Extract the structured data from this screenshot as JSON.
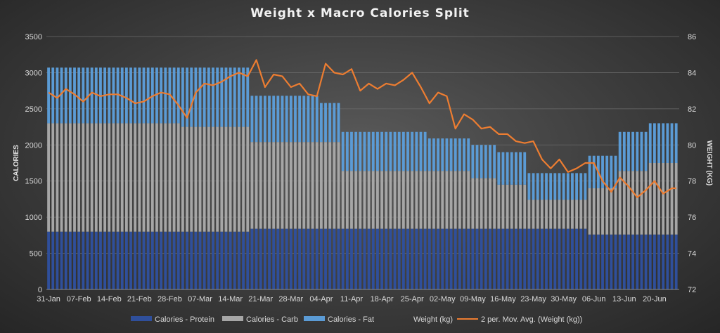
{
  "chart_data": {
    "type": "bar",
    "title": "Weight x Macro Calories Split",
    "ylabel": "CALORIES",
    "y2label": "WEIGHT (KG)",
    "ylim": [
      0,
      3500
    ],
    "y2lim": [
      72,
      86
    ],
    "yticks": [
      0,
      500,
      1000,
      1500,
      2000,
      2500,
      3000,
      3500
    ],
    "y2ticks": [
      72,
      74,
      76,
      78,
      80,
      82,
      84,
      86
    ],
    "x_tick_labels": [
      "31-Jan",
      "07-Feb",
      "14-Feb",
      "21-Feb",
      "28-Feb",
      "07-Mar",
      "14-Mar",
      "21-Mar",
      "28-Mar",
      "04-Apr",
      "11-Apr",
      "18-Apr",
      "25-Apr",
      "02-May",
      "09-May",
      "16-May",
      "23-May",
      "30-May",
      "06-Jun",
      "13-Jun",
      "20-Jun"
    ],
    "stacked": true,
    "grid": true,
    "legend_position": "bottom",
    "colors": {
      "protein": "#2f4f9b",
      "carb": "#a6a6a6",
      "fat": "#5b9bd5",
      "moving_avg": "#ed7d31"
    },
    "periods": [
      {
        "start": "31-Jan",
        "end": "02-Mar",
        "protein": 800,
        "carb": 1500,
        "fat": 770
      },
      {
        "start": "03-Mar",
        "end": "18-Mar",
        "protein": 800,
        "carb": 1450,
        "fat": 820
      },
      {
        "start": "19-Mar",
        "end": "03-Apr",
        "protein": 840,
        "carb": 1200,
        "fat": 640
      },
      {
        "start": "04-Apr",
        "end": "08-Apr",
        "protein": 840,
        "carb": 1200,
        "fat": 540
      },
      {
        "start": "09-Apr",
        "end": "28-Apr",
        "protein": 840,
        "carb": 800,
        "fat": 540
      },
      {
        "start": "29-Apr",
        "end": "08-May",
        "protein": 840,
        "carb": 800,
        "fat": 450
      },
      {
        "start": "09-May",
        "end": "14-May",
        "protein": 840,
        "carb": 700,
        "fat": 460
      },
      {
        "start": "15-May",
        "end": "21-May",
        "protein": 840,
        "carb": 610,
        "fat": 450
      },
      {
        "start": "22-May",
        "end": "04-Jun",
        "protein": 840,
        "carb": 400,
        "fat": 370
      },
      {
        "start": "05-Jun",
        "end": "11-Jun",
        "protein": 760,
        "carb": 640,
        "fat": 450
      },
      {
        "start": "12-Jun",
        "end": "18-Jun",
        "protein": 760,
        "carb": 880,
        "fat": 540
      },
      {
        "start": "19-Jun",
        "end": "25-Jun",
        "protein": 760,
        "carb": 990,
        "fat": 550
      }
    ],
    "moving_avg_weight_kg": {
      "x": [
        "31-Jan",
        "02-Feb",
        "04-Feb",
        "06-Feb",
        "08-Feb",
        "10-Feb",
        "12-Feb",
        "14-Feb",
        "16-Feb",
        "18-Feb",
        "20-Feb",
        "22-Feb",
        "24-Feb",
        "26-Feb",
        "28-Feb",
        "02-Mar",
        "04-Mar",
        "06-Mar",
        "08-Mar",
        "10-Mar",
        "12-Mar",
        "14-Mar",
        "16-Mar",
        "18-Mar",
        "20-Mar",
        "22-Mar",
        "24-Mar",
        "26-Mar",
        "28-Mar",
        "30-Mar",
        "01-Apr",
        "03-Apr",
        "05-Apr",
        "07-Apr",
        "09-Apr",
        "11-Apr",
        "13-Apr",
        "15-Apr",
        "17-Apr",
        "19-Apr",
        "21-Apr",
        "23-Apr",
        "25-Apr",
        "27-Apr",
        "29-Apr",
        "01-May",
        "03-May",
        "05-May",
        "07-May",
        "09-May",
        "11-May",
        "13-May",
        "15-May",
        "17-May",
        "19-May",
        "21-May",
        "23-May",
        "25-May",
        "27-May",
        "29-May",
        "31-May",
        "02-Jun",
        "04-Jun",
        "06-Jun",
        "08-Jun",
        "10-Jun",
        "12-Jun",
        "14-Jun",
        "16-Jun",
        "18-Jun",
        "20-Jun",
        "22-Jun",
        "24-Jun",
        "25-Jun"
      ],
      "y": [
        82.9,
        82.6,
        83.1,
        82.8,
        82.4,
        82.9,
        82.7,
        82.8,
        82.8,
        82.6,
        82.3,
        82.4,
        82.7,
        82.9,
        82.8,
        82.2,
        81.5,
        82.9,
        83.4,
        83.3,
        83.5,
        83.8,
        84.0,
        83.8,
        84.7,
        83.2,
        83.9,
        83.8,
        83.2,
        83.4,
        82.8,
        82.7,
        84.5,
        84.0,
        83.9,
        84.2,
        83.0,
        83.4,
        83.1,
        83.4,
        83.3,
        83.6,
        84.0,
        83.2,
        82.3,
        82.9,
        82.7,
        80.9,
        81.7,
        81.4,
        80.9,
        81.0,
        80.6,
        80.6,
        80.2,
        80.1,
        80.2,
        79.2,
        78.7,
        79.2,
        78.5,
        78.7,
        79.0,
        79.0,
        78.0,
        77.4,
        78.2,
        77.7,
        77.1,
        77.5,
        78.0,
        77.3,
        77.6,
        77.6
      ]
    },
    "legend": [
      "Calories - Protein",
      "Calories - Carb",
      "Calories - Fat",
      "Weight (kg)",
      "2 per. Mov. Avg. (Weight (kg))"
    ]
  }
}
